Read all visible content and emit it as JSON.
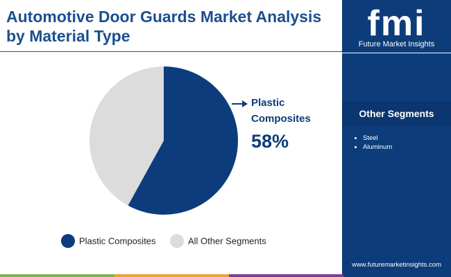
{
  "chart_data": {
    "type": "pie",
    "title": "Automotive Door Guards Market Analysis by Material Type",
    "categories": [
      "Plastic Composites",
      "All Other Segments"
    ],
    "values": [
      58,
      42
    ],
    "value_labels": [
      "58%",
      null
    ],
    "colors": [
      "#0c3c7c",
      "#dcdcdc"
    ]
  },
  "sidebar": {
    "logo": "fmi",
    "brand": "Future Market Insights",
    "heading": "Other Segments",
    "items": [
      "Steel",
      "Aluminum"
    ],
    "url": "www.futuremarketinsights.com"
  }
}
